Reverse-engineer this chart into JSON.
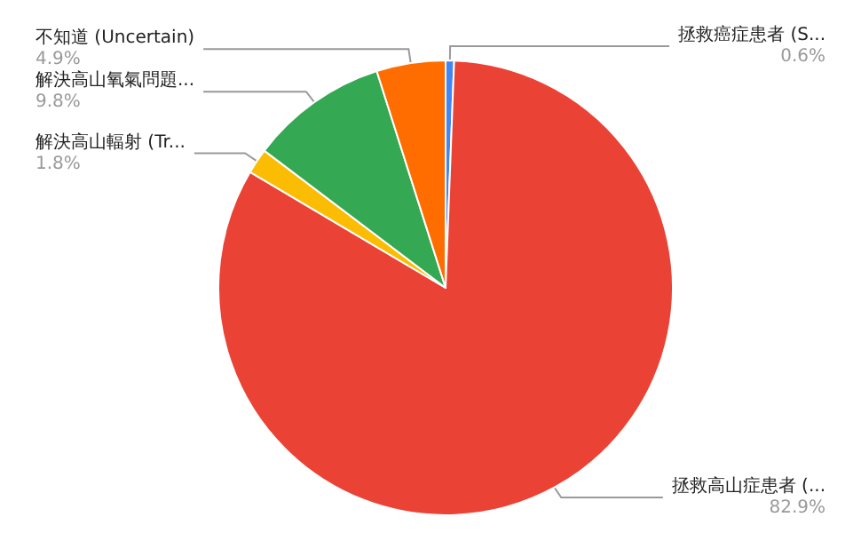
{
  "chart_data": {
    "type": "pie",
    "categories": [
      "拯救癌症患者 (S...",
      "拯救高山症患者 (...",
      "解決高山輻射 (Tr...",
      "解決高山氧氣問題...",
      "不知道 (Uncertain)"
    ],
    "values": [
      0.6,
      82.9,
      1.8,
      9.8,
      4.9
    ],
    "colors": [
      "#4285f4",
      "#ea4335",
      "#fbbc04",
      "#34a853",
      "#ff6d01"
    ],
    "value_labels": [
      "0.6%",
      "82.9%",
      "1.8%",
      "9.8%",
      "4.9%"
    ],
    "legend": false
  }
}
